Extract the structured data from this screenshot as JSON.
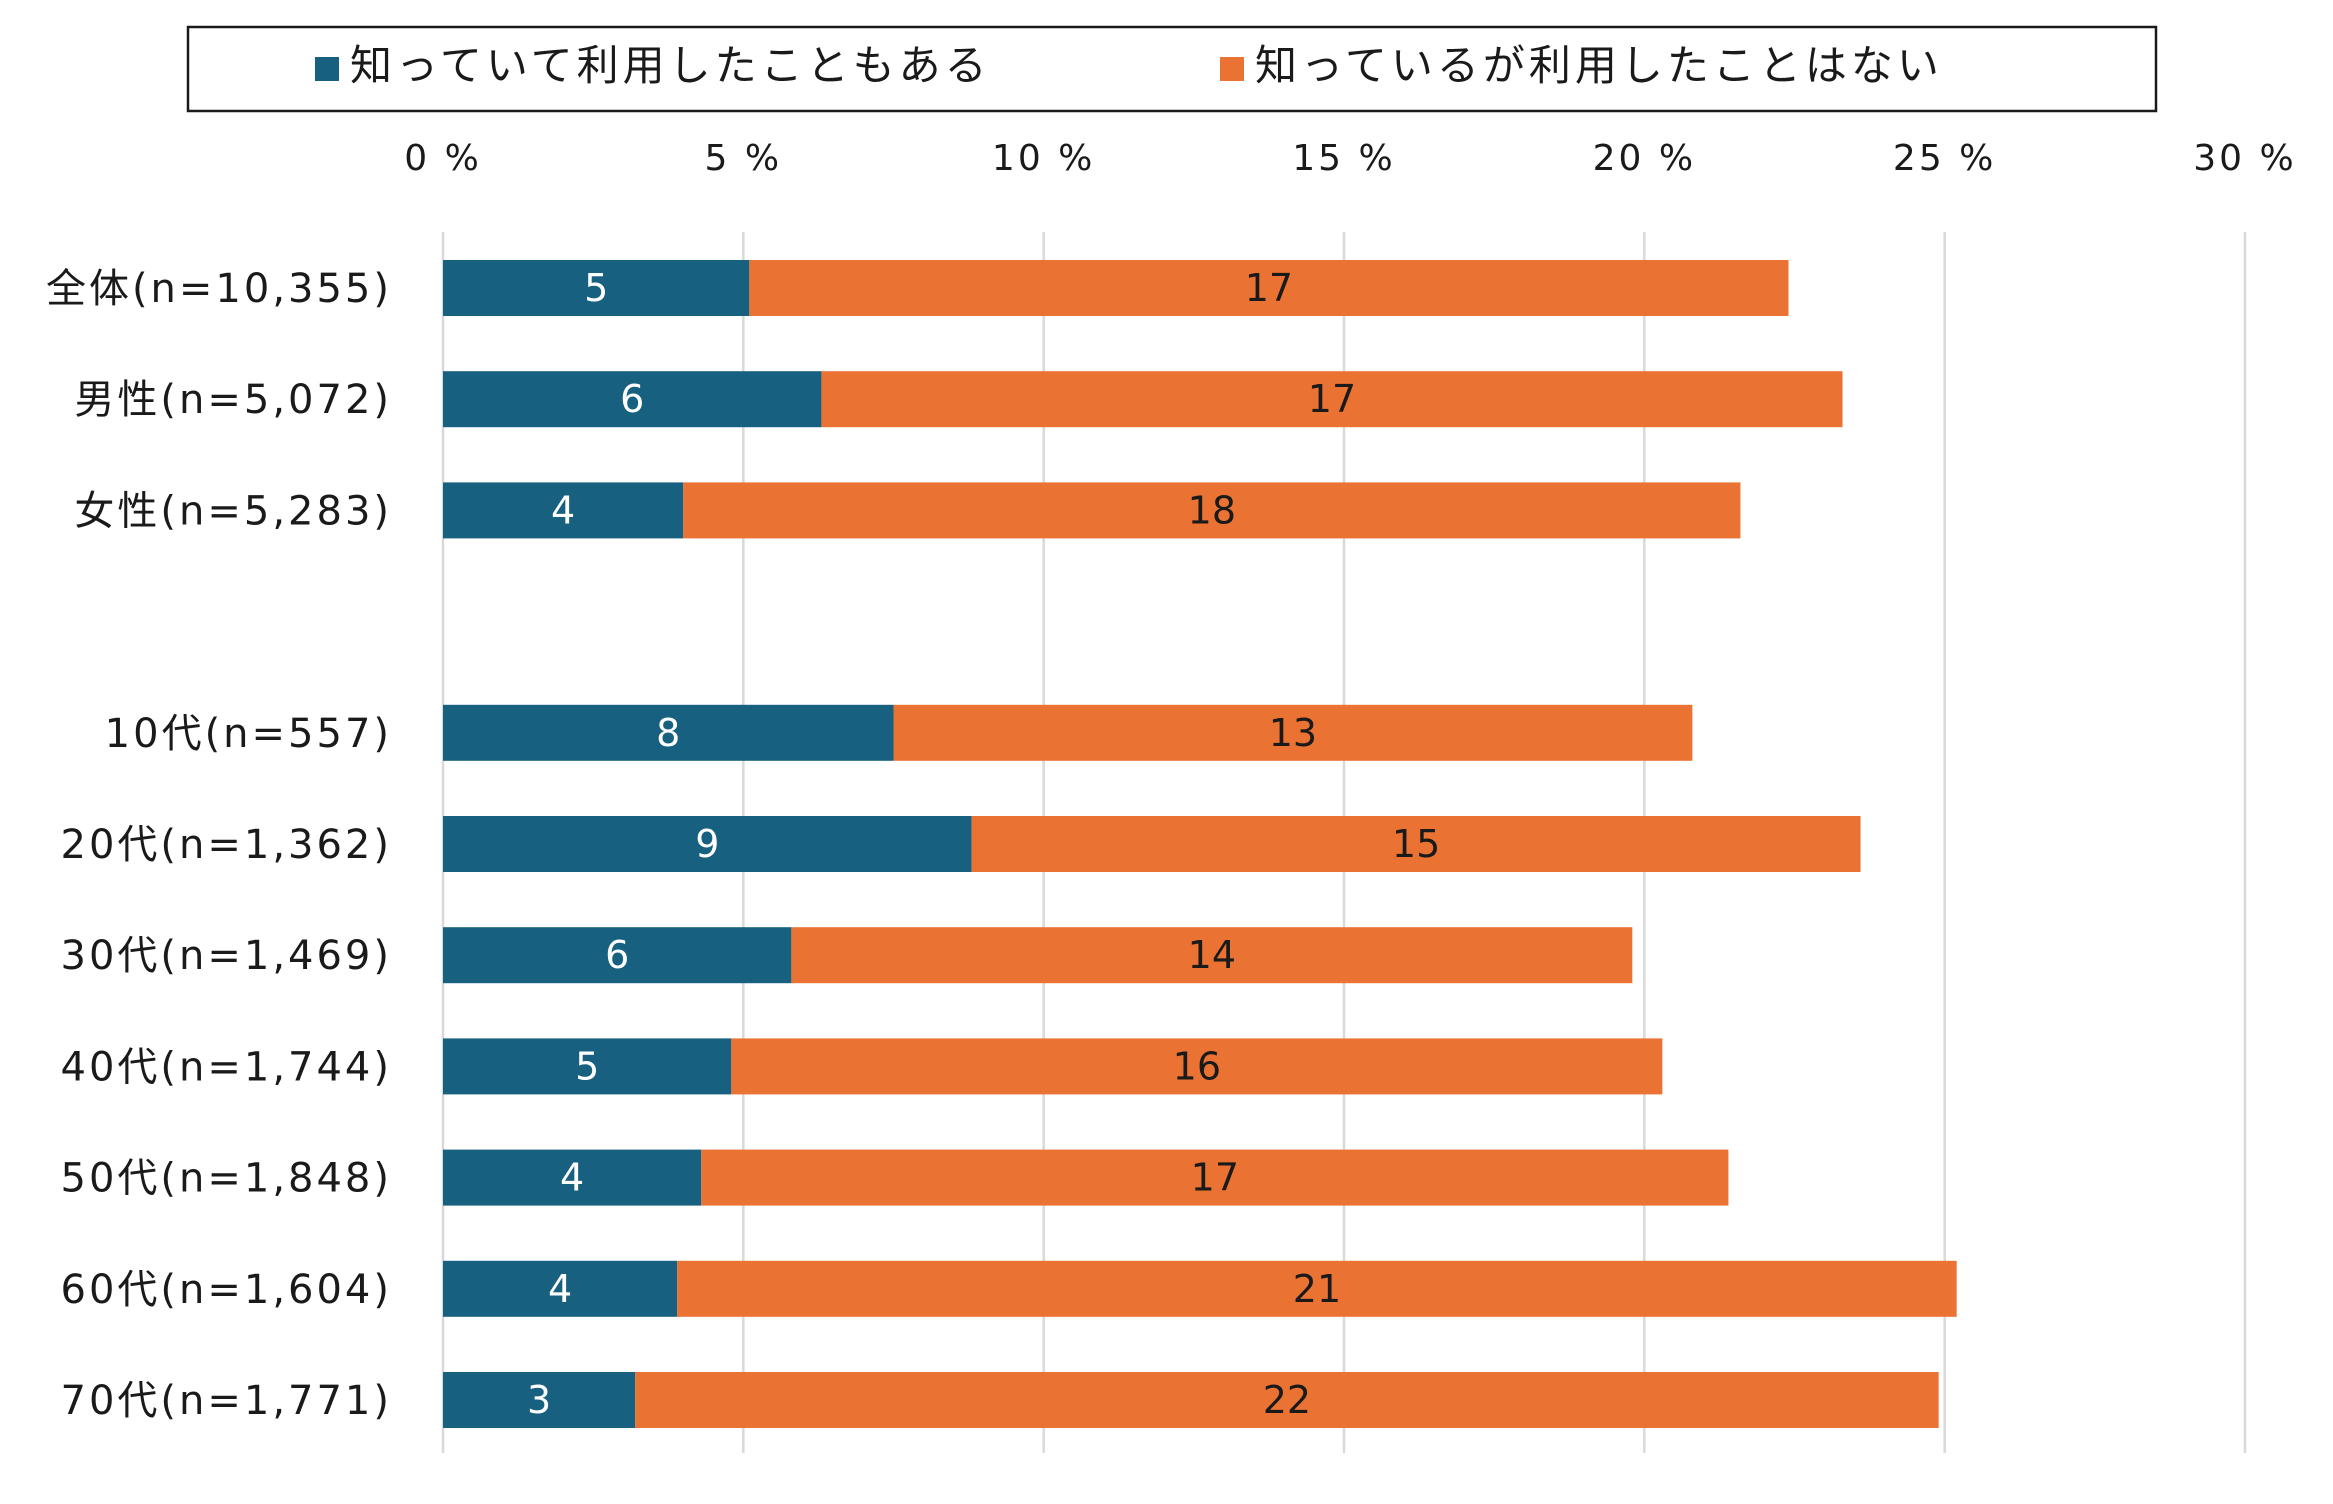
{
  "chart_data": {
    "type": "bar",
    "orientation": "horizontal",
    "stacked": true,
    "categories": [
      "全体(n=10,355)",
      "男性(n=5,072)",
      "女性(n=5,283)",
      "",
      "10代(n=557)",
      "20代(n=1,362)",
      "30代(n=1,469)",
      "40代(n=1,744)",
      "50代(n=1,848)",
      "60代(n=1,604)",
      "70代(n=1,771)"
    ],
    "series": [
      {
        "name": "知っていて利用したこともある",
        "color": "#17607f",
        "values": [
          5.1,
          6.3,
          4.0,
          null,
          7.5,
          8.8,
          5.8,
          4.8,
          4.3,
          3.9,
          3.2
        ],
        "labels": [
          "5",
          "6",
          "4",
          "",
          "8",
          "9",
          "6",
          "5",
          "4",
          "4",
          "3"
        ]
      },
      {
        "name": "知っているが利用したことはない",
        "color": "#ea7334",
        "values": [
          17.3,
          17.0,
          17.6,
          null,
          13.3,
          14.8,
          14.0,
          15.5,
          17.1,
          21.3,
          21.7
        ],
        "labels": [
          "17",
          "17",
          "18",
          "",
          "13",
          "15",
          "14",
          "16",
          "17",
          "21",
          "22"
        ]
      }
    ],
    "xlim": [
      0,
      30
    ],
    "xticks": [
      "0 %",
      "5 %",
      "10 %",
      "15 %",
      "20 %",
      "25 %",
      "30 %"
    ],
    "xaxis_position": "top",
    "grid": true,
    "legend_position": "top",
    "title": "",
    "xlabel": "",
    "ylabel": ""
  }
}
